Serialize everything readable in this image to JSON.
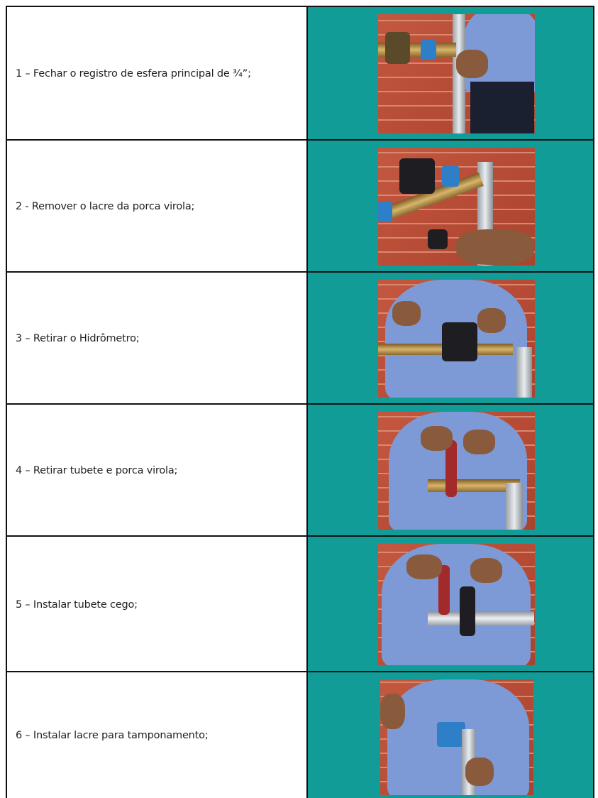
{
  "rows": [
    {
      "text": "1 – Fechar o registro de esfera principal de ¾”;"
    },
    {
      "text": "2 - Remover o lacre da porca virola;"
    },
    {
      "text": "3 – Retirar o Hidrômetro;"
    },
    {
      "text": "4 – Retirar tubete e porca virola;"
    },
    {
      "text": "5 – Instalar tubete cego;"
    },
    {
      "text": "6 – Instalar lacre para tamponamento;"
    }
  ]
}
